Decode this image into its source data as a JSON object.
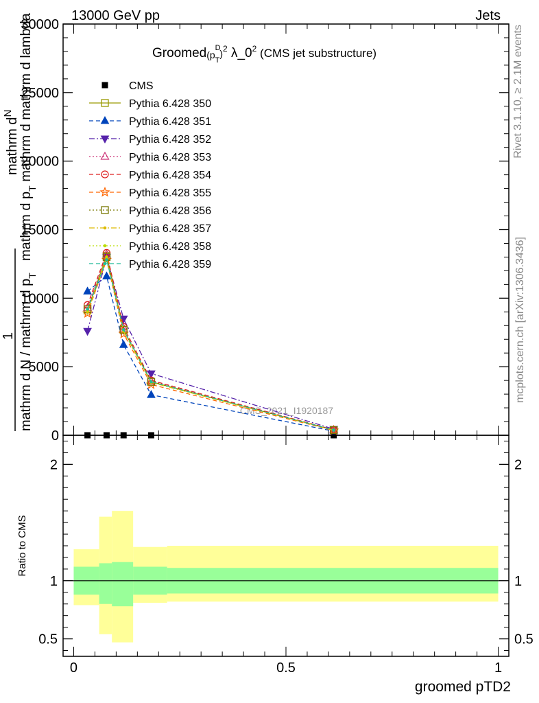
{
  "header": {
    "left": "13000 GeV pp",
    "right": "Jets"
  },
  "side_labels": {
    "rivet": "Rivet 3.1.10, ≥ 2.1M events",
    "mcplots": "mcplots.cern.ch [arXiv:1306.3436]"
  },
  "watermark": "CMS_2021_I1920187",
  "title": {
    "prefix": "Groomed",
    "p": "(p",
    "sup_d": "D",
    "sub_t": "T",
    "close": ")",
    "sq": "2",
    "lambda": " λ_0",
    "sq2": "2",
    "suffix": " (CMS jet substructure)"
  },
  "ylabel_main": {
    "top_line": "mathrm d",
    "top_N": "N",
    "top_second": "mathrm d p",
    "top_T": "T",
    "top_rest": " mathrm d mathrm d lambda",
    "numer": "1",
    "denom": "mathrm d N / mathrm d p",
    "denom_T": "T"
  },
  "xlabel": "groomed pTD2",
  "ylabel_ratio": "Ratio to CMS",
  "colors": {
    "band_inner": "#99ff99",
    "band_outer": "#ffff99"
  },
  "chart_data": [
    {
      "type": "line",
      "panel": "main",
      "xlim": [
        -0.025,
        1.025
      ],
      "ylim": [
        0,
        30000
      ],
      "yticks": [
        0,
        5000,
        10000,
        15000,
        20000,
        25000,
        30000
      ],
      "ytick_labels": [
        "0",
        "5000",
        "10000",
        "15000",
        "20000",
        "25000",
        "30000"
      ],
      "legend_placement": "top-left",
      "x": [
        0.0325,
        0.0775,
        0.1175,
        0.1825,
        0.6125
      ],
      "series": [
        {
          "name": "CMS",
          "marker": "square-filled",
          "color": "#000000",
          "dash": "",
          "values": [
            0,
            0,
            0,
            0,
            0
          ]
        },
        {
          "name": "Pythia 6.428 350",
          "marker": "square-open",
          "color": "#999900",
          "dash": "",
          "values": [
            9100,
            13100,
            7700,
            3900,
            380
          ]
        },
        {
          "name": "Pythia 6.428 351",
          "marker": "triangle-up-filled",
          "color": "#0044bb",
          "dash": "6,4",
          "values": [
            10500,
            11600,
            6600,
            2950,
            300
          ]
        },
        {
          "name": "Pythia 6.428 352",
          "marker": "triangle-down-filled",
          "color": "#5522aa",
          "dash": "8,3,2,3",
          "values": [
            7600,
            13000,
            8500,
            4500,
            450
          ]
        },
        {
          "name": "Pythia 6.428 353",
          "marker": "triangle-up-open",
          "color": "#cc3377",
          "dash": "2,3",
          "values": [
            9300,
            13200,
            7800,
            3950,
            390
          ]
        },
        {
          "name": "Pythia 6.428 354",
          "marker": "circle-open",
          "color": "#dd2222",
          "dash": "6,4",
          "values": [
            9500,
            13300,
            7900,
            4000,
            400
          ]
        },
        {
          "name": "Pythia 6.428 355",
          "marker": "star-open",
          "color": "#ff6600",
          "dash": "6,4",
          "values": [
            8900,
            12800,
            7400,
            3700,
            350
          ]
        },
        {
          "name": "Pythia 6.428 356",
          "marker": "square-open",
          "color": "#777700",
          "dash": "2,3",
          "values": [
            9200,
            13000,
            7700,
            3900,
            380
          ]
        },
        {
          "name": "Pythia 6.428 357",
          "marker": "dot",
          "color": "#ddbb00",
          "dash": "8,3,2,3",
          "values": [
            9000,
            12900,
            7600,
            3850,
            370
          ]
        },
        {
          "name": "Pythia 6.428 358",
          "marker": "dot",
          "color": "#bbdd00",
          "dash": "2,3",
          "values": [
            9100,
            13000,
            7650,
            3870,
            375
          ]
        },
        {
          "name": "Pythia 6.428 359",
          "marker": "dot",
          "color": "#22bb99",
          "dash": "6,4",
          "values": [
            9200,
            12800,
            7700,
            3900,
            380
          ]
        }
      ]
    },
    {
      "type": "area",
      "panel": "ratio",
      "xlim": [
        -0.025,
        1.025
      ],
      "ylim": [
        0.35,
        2.25
      ],
      "yticks": [
        0.5,
        1,
        2
      ],
      "ytick_labels": [
        "0.5",
        "1",
        "2"
      ],
      "xticks": [
        0,
        0.5,
        1
      ],
      "xtick_labels": [
        "0",
        "0.5",
        "1"
      ],
      "reference_line": 1,
      "bins": [
        {
          "x0": 0.0,
          "x1": 0.06,
          "inner": [
            0.88,
            1.12
          ],
          "outer": [
            0.79,
            1.27
          ]
        },
        {
          "x0": 0.06,
          "x1": 0.09,
          "inner": [
            0.8,
            1.15
          ],
          "outer": [
            0.54,
            1.55
          ]
        },
        {
          "x0": 0.09,
          "x1": 0.14,
          "inner": [
            0.78,
            1.16
          ],
          "outer": [
            0.47,
            1.6
          ]
        },
        {
          "x0": 0.14,
          "x1": 0.22,
          "inner": [
            0.88,
            1.12
          ],
          "outer": [
            0.81,
            1.29
          ]
        },
        {
          "x0": 0.22,
          "x1": 1.0,
          "inner": [
            0.89,
            1.11
          ],
          "outer": [
            0.82,
            1.3
          ]
        }
      ]
    }
  ]
}
